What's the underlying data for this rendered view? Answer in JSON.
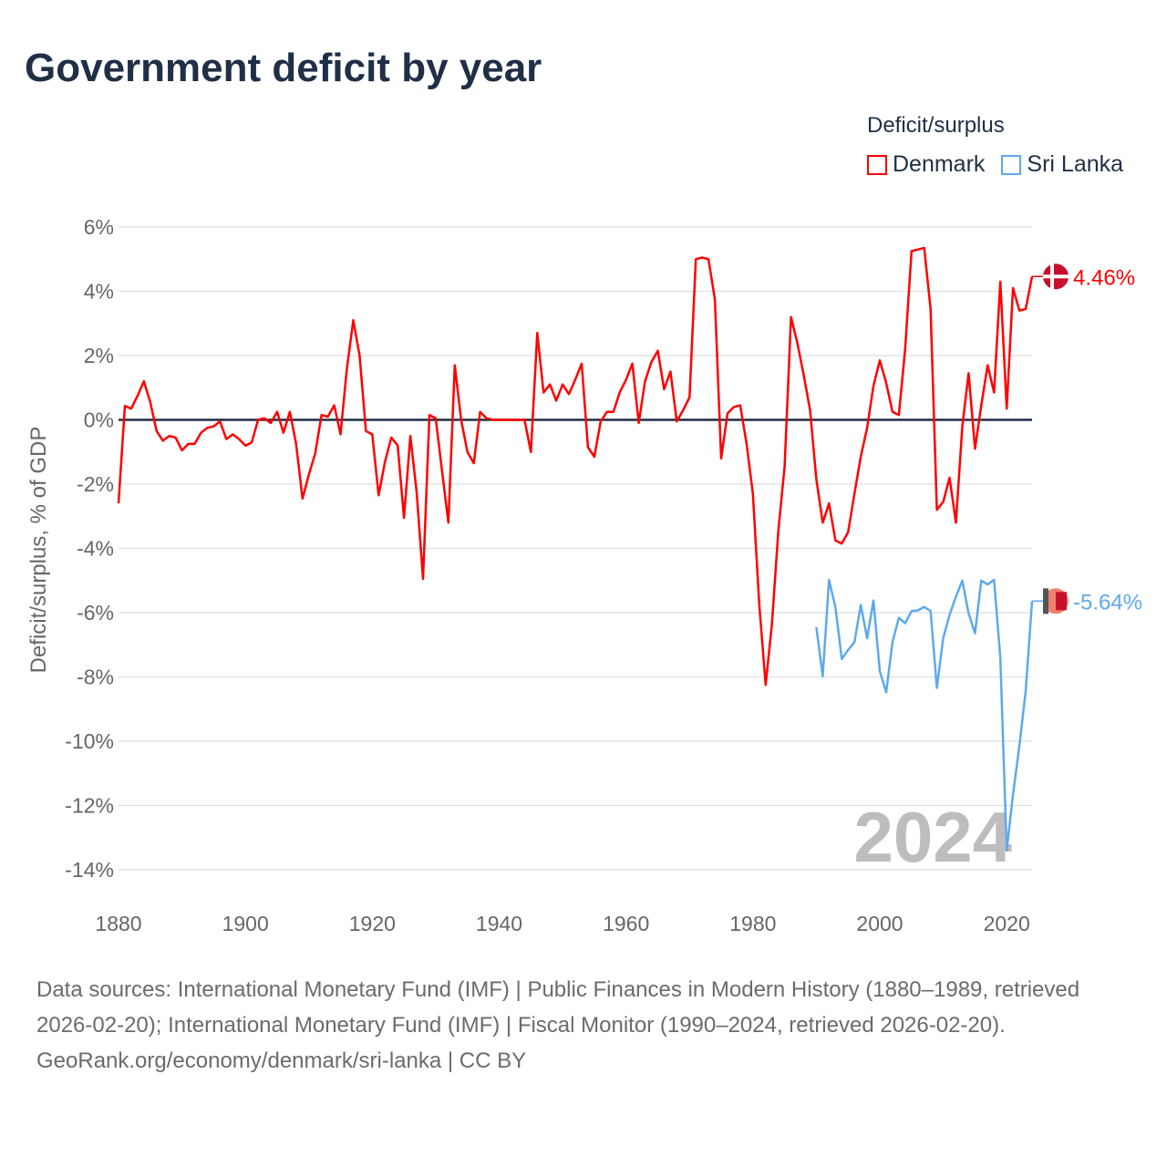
{
  "title": "Government deficit by year",
  "legend": {
    "title": "Deficit/surplus",
    "items": [
      {
        "label": "Denmark",
        "color": "#ff0000"
      },
      {
        "label": "Sri Lanka",
        "color": "#5da9ec"
      }
    ]
  },
  "chart_data": {
    "type": "line",
    "title": "Government deficit by year",
    "xlabel": "",
    "ylabel": "Deficit/surplus, % of GDP",
    "xlim": [
      1880,
      2024
    ],
    "ylim": [
      -14,
      6
    ],
    "x_ticks": [
      "1880",
      "1900",
      "1920",
      "1940",
      "1960",
      "1980",
      "2000",
      "2020"
    ],
    "y_ticks": [
      {
        "v": 6,
        "label": "6%"
      },
      {
        "v": 4,
        "label": "4%"
      },
      {
        "v": 2,
        "label": "2%"
      },
      {
        "v": 0,
        "label": "0%"
      },
      {
        "v": -2,
        "label": "-2%"
      },
      {
        "v": -4,
        "label": "-4%"
      },
      {
        "v": -6,
        "label": "-6%"
      },
      {
        "v": -8,
        "label": "-8%"
      },
      {
        "v": -10,
        "label": "-10%"
      },
      {
        "v": -12,
        "label": "-12%"
      },
      {
        "v": -14,
        "label": "-14%"
      }
    ],
    "grid": true,
    "legend_position": "top-right",
    "year_watermark": "2024",
    "series": [
      {
        "name": "Denmark",
        "color": "#ff0000",
        "start_year": 1880,
        "end_label": "4.46%",
        "values": [
          -2.6,
          0.43,
          0.35,
          0.75,
          1.2,
          0.55,
          -0.35,
          -0.65,
          -0.5,
          -0.55,
          -0.95,
          -0.75,
          -0.75,
          -0.4,
          -0.25,
          -0.2,
          -0.05,
          -0.6,
          -0.45,
          -0.6,
          -0.8,
          -0.7,
          0,
          0.05,
          -0.1,
          0.25,
          -0.4,
          0.25,
          -0.75,
          -2.45,
          -1.7,
          -1.05,
          0.15,
          0.1,
          0.45,
          -0.45,
          1.6,
          3.1,
          2.0,
          -0.35,
          -0.45,
          -2.35,
          -1.3,
          -0.55,
          -0.8,
          -3.05,
          -0.5,
          -2.25,
          -4.95,
          0.15,
          0.05,
          -1.6,
          -3.2,
          1.7,
          0,
          -1.0,
          -1.35,
          0.25,
          0.05,
          0,
          0,
          0,
          0,
          0,
          0,
          -1.0,
          2.7,
          0.85,
          1.1,
          0.6,
          1.1,
          0.8,
          1.25,
          1.75,
          -0.85,
          -1.15,
          -0.05,
          0.25,
          0.25,
          0.85,
          1.25,
          1.75,
          -0.1,
          1.2,
          1.8,
          2.15,
          0.95,
          1.5,
          -0.05,
          0.3,
          0.7,
          5.0,
          5.05,
          5.0,
          3.75,
          -1.2,
          0.2,
          0.4,
          0.45,
          -0.75,
          -2.3,
          -5.75,
          -8.25,
          -6.35,
          -3.45,
          -1.45,
          3.2,
          2.4,
          1.4,
          0.3,
          -1.85,
          -3.2,
          -2.6,
          -3.75,
          -3.85,
          -3.5,
          -2.3,
          -1.15,
          -0.25,
          1.05,
          1.85,
          1.15,
          0.25,
          0.15,
          2.2,
          5.25,
          5.3,
          5.35,
          3.45,
          -2.8,
          -2.55,
          -1.8,
          -3.2,
          -0.2,
          1.45,
          -0.9,
          0.45,
          1.7,
          0.85,
          4.3,
          0.35,
          4.1,
          3.4,
          3.45,
          4.46
        ]
      },
      {
        "name": "Sri Lanka",
        "color": "#5da9ec",
        "start_year": 1990,
        "end_label": "-5.64%",
        "values": [
          -6.45,
          -7.98,
          -4.98,
          -5.83,
          -7.44,
          -7.16,
          -6.92,
          -5.76,
          -6.8,
          -5.62,
          -7.82,
          -8.48,
          -6.92,
          -6.16,
          -6.33,
          -5.95,
          -5.93,
          -5.82,
          -5.95,
          -8.34,
          -6.78,
          -6.07,
          -5.5,
          -5.0,
          -6.02,
          -6.64,
          -5.0,
          -5.12,
          -4.98,
          -7.4,
          -13.4,
          -11.66,
          -10.14,
          -8.44,
          -5.64
        ]
      }
    ]
  },
  "footer": {
    "sources": "Data sources: International Monetary Fund (IMF) | Public Finances in Modern History (1880–1989, retrieved 2026-02-20); International Monetary Fund (IMF) | Fiscal Monitor (1990–2024, retrieved 2026-02-20).",
    "credit": "GeoRank.org/economy/denmark/sri-lanka | CC BY"
  }
}
